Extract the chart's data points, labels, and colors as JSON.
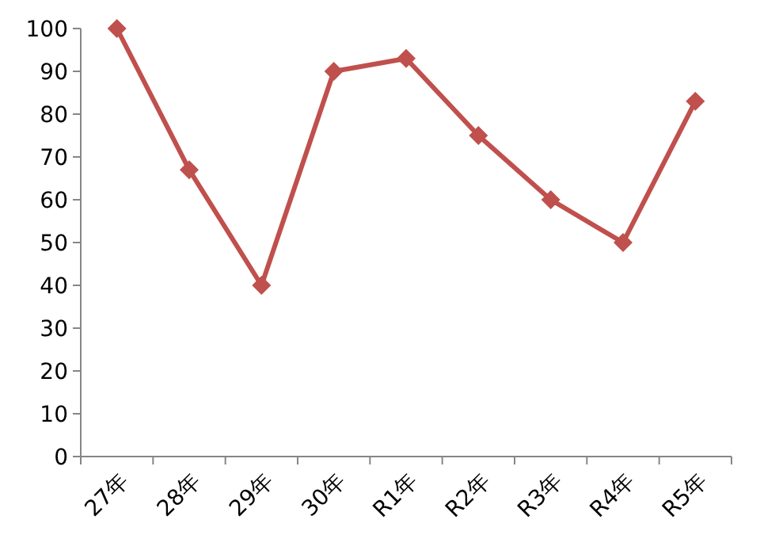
{
  "chart_data": {
    "type": "line",
    "categories": [
      "27年",
      "28年",
      "29年",
      "30年",
      "R1年",
      "R2年",
      "R3年",
      "R4年",
      "R5年"
    ],
    "series": [
      {
        "color": "#c0504d",
        "values": [
          100,
          67,
          40,
          90,
          93,
          75,
          60,
          50,
          83
        ]
      }
    ],
    "ylim": [
      0,
      100
    ],
    "yticks": [
      0,
      10,
      20,
      30,
      40,
      50,
      60,
      70,
      80,
      90,
      100
    ],
    "grid": false,
    "marker": "diamond",
    "line_style": "solid"
  }
}
